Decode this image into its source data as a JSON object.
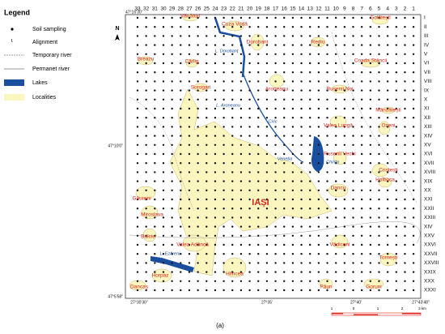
{
  "legend": {
    "title": "Legend",
    "items": [
      "Soil sampling",
      "Alignment",
      "Temporary river",
      "Permanet river",
      "Lakes",
      "Localities"
    ]
  },
  "north": "N",
  "columns": [
    "33",
    "32",
    "31",
    "30",
    "29",
    "28",
    "27",
    "26",
    "25",
    "24",
    "23",
    "22",
    "21",
    "20",
    "19",
    "18",
    "17",
    "16",
    "15",
    "14",
    "13",
    "12",
    "11",
    "10",
    "9",
    "8",
    "7",
    "6",
    "5",
    "4",
    "3",
    "2",
    "1"
  ],
  "rows": [
    "I",
    "II",
    "III",
    "IV",
    "V",
    "VI",
    "VII",
    "VIII",
    "IX",
    "X",
    "XI",
    "XII",
    "XIII",
    "XIV",
    "XV",
    "XVI",
    "XVII",
    "XVIII",
    "XIX",
    "XX",
    "XXI",
    "XXII",
    "XXIII",
    "XIV",
    "XXV",
    "XXVI",
    "XXVII",
    "XXVIII",
    "XXIX",
    "XXX",
    "XXXI"
  ],
  "coordinates": [
    "47°16'30\"",
    "47°10'0\"",
    "47°5'58\"",
    "27°30'30\"",
    "27°35'",
    "27°40'",
    "27°43'48\""
  ],
  "places": [
    "Vânători",
    "Cuza Vodă",
    "Golăiești",
    "Dorobanț",
    "Rediu",
    "Breazu",
    "Coada Stâncii",
    "Cârlig",
    "Sorogari",
    "Aroneanu",
    "Rusenii Noi",
    "Mânzătești",
    "Valea Lungă",
    "Ozeni",
    "Rusenii Vechi",
    "Cristești",
    "Holboca",
    "Dancu",
    "Găureni",
    "Miroslava",
    "Balciu",
    "Valea Adâncă",
    "IAȘI",
    "Vădiceni",
    "Tomești",
    "Horpaz",
    "Hlincea",
    "Dancaș",
    "Păun",
    "Goruni"
  ],
  "water_labels": [
    "L. Dorobanț",
    "L. Aroneanu",
    "Ciric",
    "Veneția",
    "L. Chirița",
    "L. Ezăreni"
  ],
  "scale": [
    "1",
    "0",
    "1",
    "2",
    "3 km"
  ],
  "caption": "(a)"
}
